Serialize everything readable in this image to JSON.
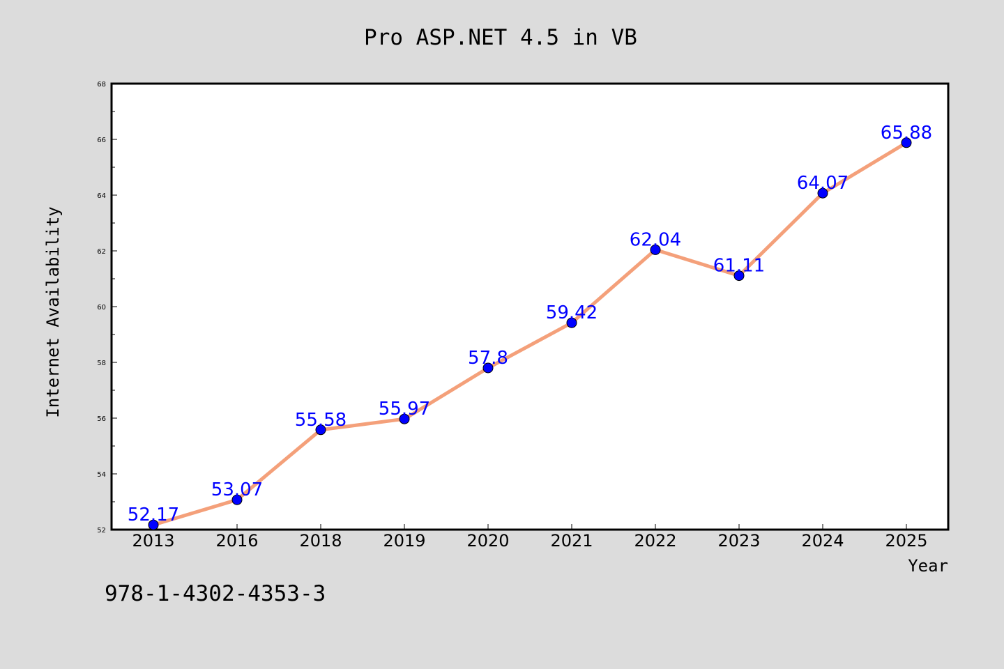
{
  "footer": {
    "code": "978-1-4302-4353-3"
  },
  "chart_data": {
    "type": "line",
    "title": "Pro ASP.NET 4.5 in VB",
    "xlabel": "Year",
    "ylabel": "Internet Availability",
    "categories": [
      "2013",
      "2016",
      "2018",
      "2019",
      "2020",
      "2021",
      "2022",
      "2023",
      "2024",
      "2025"
    ],
    "series": [
      {
        "values": [
          52.17,
          53.07,
          55.58,
          55.97,
          57.8,
          59.42,
          62.04,
          61.11,
          64.07,
          65.88
        ],
        "labels": [
          "52.17",
          "53.07",
          "55.58",
          "55.97",
          "57.8",
          "59.42",
          "62.04",
          "61.11",
          "64.07",
          "65.88"
        ],
        "line_color": "#f4a07a",
        "marker_color": "#0000ff"
      }
    ],
    "ylim": [
      52,
      68
    ],
    "yticks": [
      52,
      54,
      56,
      58,
      60,
      62,
      64,
      66,
      68
    ],
    "ytick_labels": [
      "52",
      "54",
      "56",
      "58",
      "60",
      "62",
      "64",
      "66",
      "68"
    ],
    "grid": false,
    "legend": "none",
    "colors": {
      "background": "#dcdcdc",
      "plot_background": "#ffffff",
      "data_label": "#0000ff"
    }
  }
}
